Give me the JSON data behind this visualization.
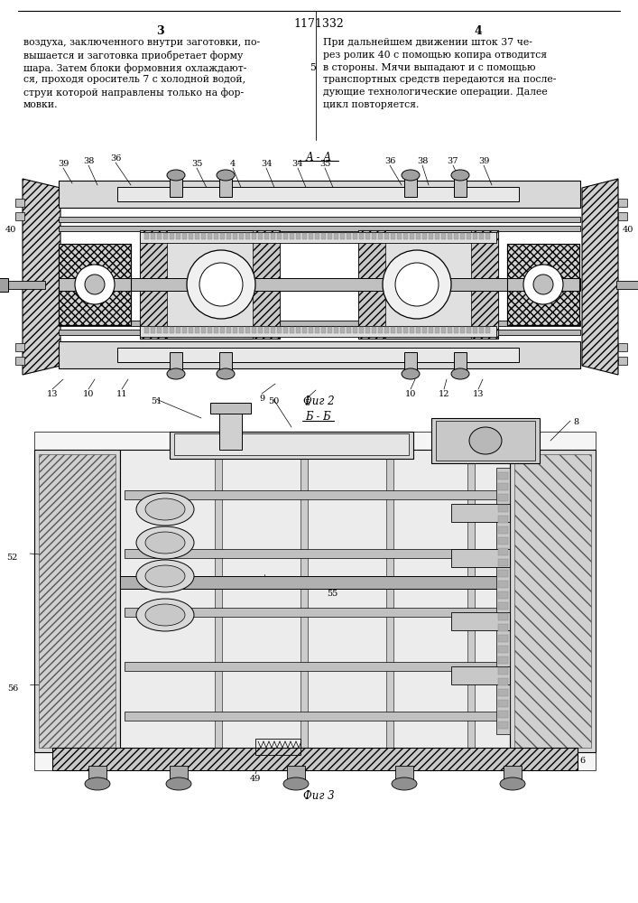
{
  "page_number": "1171332",
  "col_left": "3",
  "col_right": "4",
  "text_left_lines": [
    "воздуха, заключенного внутри заготовки, по-",
    "вышается и заготовка приобретает форму",
    "шара. Затем блоки формовния охлаждают-",
    "ся, проходя ороситель 7 с холодной водой,",
    "струи которой направлены только на фор-",
    "мовки."
  ],
  "text_right_lines": [
    "При дальнейшем движении шток 37 че-",
    "рез ролик 40 с помощью копира отводится",
    "в стороны. Мячи выпадают и с помощью",
    "транспортных средств передаются на после-",
    "дующие технологические операции. Далее",
    "цикл повторяется."
  ],
  "number_5": "5",
  "section_aa": "А - А",
  "fig2_caption": "Фиг 2",
  "section_bb": "Б - Б",
  "fig3_caption": "Фиг 3",
  "bg_color": "#ffffff"
}
